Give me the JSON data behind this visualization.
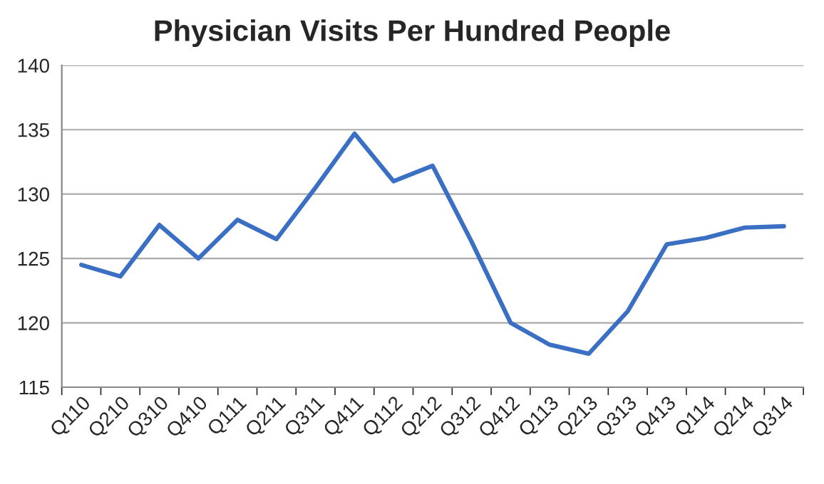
{
  "chart_data": {
    "type": "line",
    "title": "Physician Visits Per Hundred People",
    "categories": [
      "Q110",
      "Q210",
      "Q310",
      "Q410",
      "Q111",
      "Q211",
      "Q311",
      "Q411",
      "Q112",
      "Q212",
      "Q312",
      "Q412",
      "Q113",
      "Q213",
      "Q313",
      "Q413",
      "Q114",
      "Q214",
      "Q314"
    ],
    "series": [
      {
        "color": "#3a6fc4",
        "values": [
          124.5,
          123.6,
          127.6,
          125.0,
          128.0,
          126.5,
          130.5,
          134.7,
          131.0,
          132.2,
          126.3,
          120.0,
          118.3,
          117.6,
          120.9,
          126.1,
          126.6,
          127.4,
          127.5
        ]
      }
    ],
    "ylim": [
      115,
      140
    ],
    "yticks": [
      115,
      120,
      125,
      130,
      135,
      140
    ],
    "grid": "y",
    "marker": "none",
    "line_style": "solid"
  }
}
